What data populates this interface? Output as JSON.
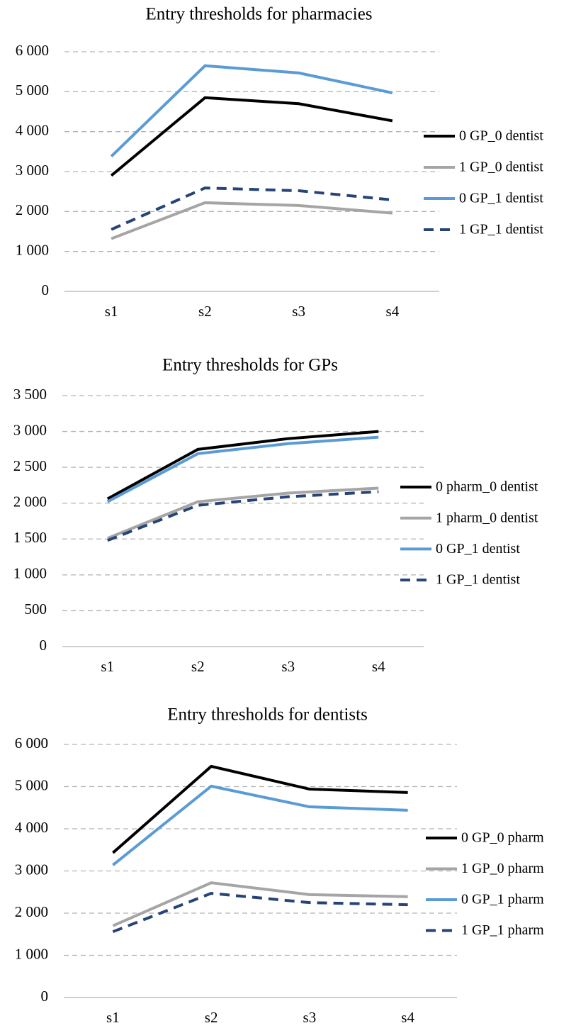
{
  "chart_data": [
    {
      "type": "line",
      "title": "Entry thresholds for pharmacies",
      "categories": [
        "s1",
        "s2",
        "s3",
        "s4"
      ],
      "ylim": [
        0,
        6000
      ],
      "yticks": [
        0,
        {
          "value": 1000,
          "label": "1 000"
        },
        {
          "value": 2000,
          "label": "2 000"
        },
        {
          "value": 3000,
          "label": "3 000"
        },
        {
          "value": 4000,
          "label": "4 000"
        },
        {
          "value": 5000,
          "label": "5 000"
        },
        {
          "value": 6000,
          "label": "6 000"
        }
      ],
      "grid": true,
      "legend": "right",
      "series": [
        {
          "name": "0 GP_0 dentist",
          "color": "#000000",
          "line_style": "solid",
          "values": [
            2900,
            4850,
            4700,
            4270
          ]
        },
        {
          "name": "1 GP_0 dentist",
          "color": "#a5a5a5",
          "line_style": "solid",
          "values": [
            1320,
            2220,
            2150,
            1960
          ]
        },
        {
          "name": "0 GP_1 dentist",
          "color": "#5b9bd5",
          "line_style": "solid",
          "values": [
            3380,
            5650,
            5470,
            4970
          ]
        },
        {
          "name": "1 GP_1 dentist",
          "color": "#264478",
          "line_style": "dashed",
          "values": [
            1550,
            2590,
            2520,
            2290
          ]
        }
      ]
    },
    {
      "type": "line",
      "title": "Entry thresholds for GPs",
      "categories": [
        "s1",
        "s2",
        "s3",
        "s4"
      ],
      "ylim": [
        0,
        3500
      ],
      "yticks": [
        0,
        500,
        {
          "value": 1000,
          "label": "1 000"
        },
        {
          "value": 1500,
          "label": "1 500"
        },
        {
          "value": 2000,
          "label": "2 000"
        },
        {
          "value": 2500,
          "label": "2 500"
        },
        {
          "value": 3000,
          "label": "3 000"
        },
        {
          "value": 3500,
          "label": "3 500"
        }
      ],
      "grid": true,
      "legend": "right",
      "series": [
        {
          "name": "0 pharm_0 dentist",
          "color": "#000000",
          "line_style": "solid",
          "values": [
            2060,
            2750,
            2900,
            3000
          ]
        },
        {
          "name": "1 pharm_0 dentist",
          "color": "#a5a5a5",
          "line_style": "solid",
          "values": [
            1510,
            2020,
            2140,
            2210
          ]
        },
        {
          "name": "0 GP_1 dentist",
          "color": "#5b9bd5",
          "line_style": "solid",
          "values": [
            2020,
            2690,
            2830,
            2920
          ]
        },
        {
          "name": "1 GP_1 dentist",
          "color": "#264478",
          "line_style": "dashed",
          "values": [
            1480,
            1970,
            2090,
            2160
          ]
        }
      ]
    },
    {
      "type": "line",
      "title": "Entry thresholds for dentists",
      "categories": [
        "s1",
        "s2",
        "s3",
        "s4"
      ],
      "ylim": [
        0,
        6000
      ],
      "yticks": [
        0,
        {
          "value": 1000,
          "label": "1 000"
        },
        {
          "value": 2000,
          "label": "2 000"
        },
        {
          "value": 3000,
          "label": "3 000"
        },
        {
          "value": 4000,
          "label": "4 000"
        },
        {
          "value": 5000,
          "label": "5 000"
        },
        {
          "value": 6000,
          "label": "6 000"
        }
      ],
      "grid": true,
      "legend": "right",
      "series": [
        {
          "name": "0 GP_0 pharm",
          "color": "#000000",
          "line_style": "solid",
          "values": [
            3430,
            5480,
            4940,
            4860
          ]
        },
        {
          "name": "1 GP_0 pharm",
          "color": "#a5a5a5",
          "line_style": "solid",
          "values": [
            1700,
            2720,
            2440,
            2390
          ]
        },
        {
          "name": "0 GP_1 pharm",
          "color": "#5b9bd5",
          "line_style": "solid",
          "values": [
            3140,
            5010,
            4520,
            4440
          ]
        },
        {
          "name": "1 GP_1 pharm",
          "color": "#264478",
          "line_style": "dashed",
          "values": [
            1560,
            2470,
            2250,
            2200
          ]
        }
      ]
    }
  ]
}
